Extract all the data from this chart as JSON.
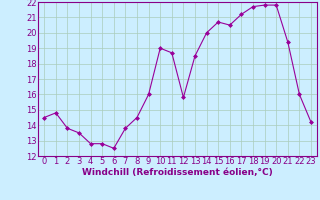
{
  "x": [
    0,
    1,
    2,
    3,
    4,
    5,
    6,
    7,
    8,
    9,
    10,
    11,
    12,
    13,
    14,
    15,
    16,
    17,
    18,
    19,
    20,
    21,
    22,
    23
  ],
  "y": [
    14.5,
    14.8,
    13.8,
    13.5,
    12.8,
    12.8,
    12.5,
    13.8,
    14.5,
    16.0,
    19.0,
    18.7,
    15.8,
    18.5,
    20.0,
    20.7,
    20.5,
    21.2,
    21.7,
    21.8,
    21.8,
    19.4,
    16.0,
    14.2
  ],
  "xlabel": "Windchill (Refroidissement éolien,°C)",
  "xlim_min": -0.5,
  "xlim_max": 23.5,
  "ylim": [
    12,
    22
  ],
  "yticks": [
    12,
    13,
    14,
    15,
    16,
    17,
    18,
    19,
    20,
    21,
    22
  ],
  "xticks": [
    0,
    1,
    2,
    3,
    4,
    5,
    6,
    7,
    8,
    9,
    10,
    11,
    12,
    13,
    14,
    15,
    16,
    17,
    18,
    19,
    20,
    21,
    22,
    23
  ],
  "line_color": "#990099",
  "marker": "D",
  "marker_size": 2.0,
  "line_width": 0.8,
  "bg_color": "#cceeff",
  "grid_color": "#aaccbb",
  "xlabel_fontsize": 6.5,
  "tick_fontsize": 6.0,
  "fig_bg": "#cceeff"
}
